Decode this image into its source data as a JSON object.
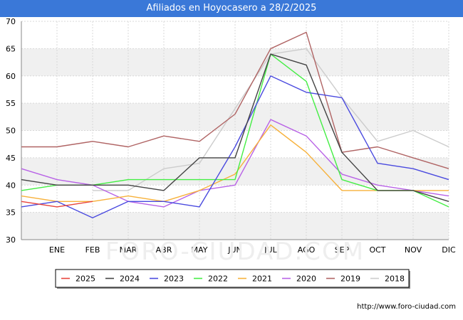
{
  "header": {
    "title": "Afiliados en Hoyocasero a 28/2/2025"
  },
  "footer": {
    "url": "http://www.foro-ciudad.com"
  },
  "watermark": "FORO-CIUDAD.COM",
  "chart_data": {
    "type": "line",
    "title": "Afiliados en Hoyocasero a 28/2/2025",
    "categories": [
      "",
      "ENE",
      "FEB",
      "MAR",
      "ABR",
      "MAY",
      "JUN",
      "JUL",
      "AGO",
      "SEP",
      "OCT",
      "NOV",
      "DIC"
    ],
    "ylim": [
      30,
      70
    ],
    "yticks": [
      30,
      35,
      40,
      45,
      50,
      55,
      60,
      65,
      70
    ],
    "grid": true,
    "legend_position": "bottom",
    "series": [
      {
        "name": "2025",
        "color": "#e8433a",
        "values": [
          37,
          36,
          37,
          null,
          null,
          null,
          null,
          null,
          null,
          null,
          null,
          null,
          null
        ]
      },
      {
        "name": "2024",
        "color": "#444444",
        "values": [
          41,
          40,
          40,
          40,
          39,
          45,
          45,
          64,
          62,
          46,
          39,
          39,
          37
        ]
      },
      {
        "name": "2023",
        "color": "#4a4adf",
        "values": [
          36,
          37,
          34,
          37,
          37,
          36,
          47,
          60,
          57,
          56,
          44,
          43,
          41
        ]
      },
      {
        "name": "2022",
        "color": "#44ee44",
        "values": [
          39,
          40,
          40,
          41,
          41,
          41,
          41,
          64,
          59,
          41,
          39,
          39,
          36
        ]
      },
      {
        "name": "2021",
        "color": "#f7b13a",
        "values": [
          38,
          37,
          37,
          38,
          37,
          39,
          42,
          51,
          46,
          39,
          39,
          39,
          39
        ]
      },
      {
        "name": "2020",
        "color": "#b862e6",
        "values": [
          43,
          41,
          40,
          37,
          36,
          39,
          40,
          52,
          49,
          42,
          40,
          39,
          38
        ]
      },
      {
        "name": "2019",
        "color": "#b06464",
        "values": [
          47,
          47,
          48,
          47,
          49,
          48,
          53,
          65,
          68,
          46,
          47,
          45,
          43
        ]
      },
      {
        "name": "2018",
        "color": "#cccccc",
        "values": [
          null,
          null,
          39,
          39,
          43,
          44,
          54,
          64,
          65,
          56,
          48,
          50,
          47
        ]
      }
    ]
  }
}
